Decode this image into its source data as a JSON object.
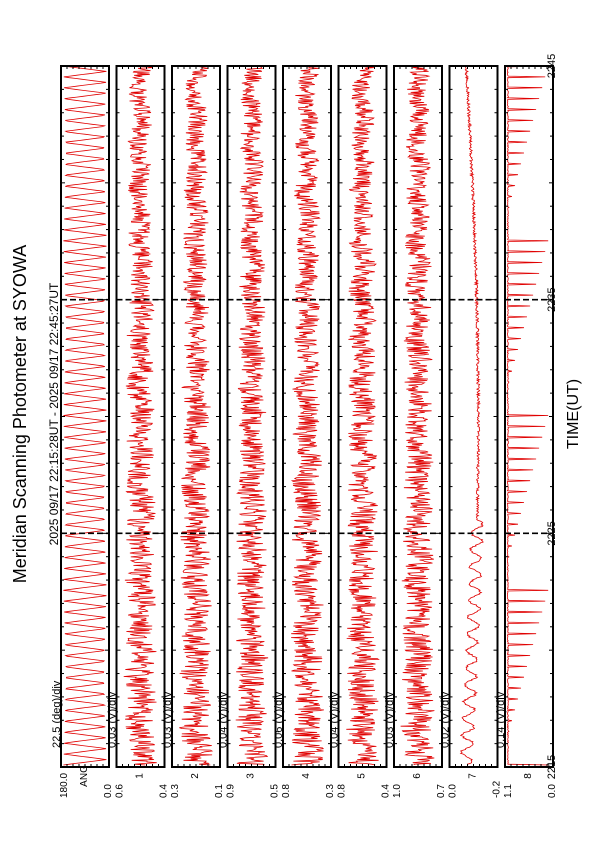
{
  "title": "Meridian Scanning Photometer at SYOWA",
  "time_range": "2025 09/17 22:15:28UT - 2025 09/17 22:45:27UT",
  "xlabel": "TIME(UT)",
  "line_color": "#e00000",
  "chart_data": {
    "type": "line",
    "x_ticks": [
      "2215",
      "2225",
      "2235",
      "2245"
    ],
    "x_range": [
      "2215",
      "2245"
    ],
    "panels": [
      {
        "channel": "ANG",
        "scale": "22.5 (deg)/div",
        "ytop": "180.0",
        "ybottom": "0.0",
        "ymin": 0.0,
        "ymax": 180.0,
        "pattern": "sweep"
      },
      {
        "channel": "1",
        "scale": "0.03 (V)/div",
        "ytop": "0.6",
        "ybottom": "0.4",
        "ymin": 0.4,
        "ymax": 0.6,
        "pattern": "noise"
      },
      {
        "channel": "2",
        "scale": "0.03 (V)/div",
        "ytop": "0.3",
        "ybottom": "0.1",
        "ymin": 0.1,
        "ymax": 0.3,
        "pattern": "noise"
      },
      {
        "channel": "3",
        "scale": "0.04 (V)/div",
        "ytop": "0.9",
        "ybottom": "0.5",
        "ymin": 0.5,
        "ymax": 0.9,
        "pattern": "noise"
      },
      {
        "channel": "4",
        "scale": "0.06 (V)/div",
        "ytop": "0.8",
        "ybottom": "0.3",
        "ymin": 0.3,
        "ymax": 0.8,
        "pattern": "noise"
      },
      {
        "channel": "5",
        "scale": "0.04 (V)/div",
        "ytop": "0.8",
        "ybottom": "0.4",
        "ymin": 0.4,
        "ymax": 0.8,
        "pattern": "noise"
      },
      {
        "channel": "6",
        "scale": "0.03 (V)/div",
        "ytop": "1.0",
        "ybottom": "0.7",
        "ymin": 0.7,
        "ymax": 1.0,
        "pattern": "noise"
      },
      {
        "channel": "7",
        "scale": "0.02 (V)/div",
        "ytop": "0.0",
        "ybottom": "-0.2",
        "ymin": -0.2,
        "ymax": 0.0,
        "pattern": "drift"
      },
      {
        "channel": "8",
        "scale": "0.14 (V)/div",
        "ytop": "1.1",
        "ybottom": "0.0",
        "ymin": 0.0,
        "ymax": 1.1,
        "pattern": "spikes"
      }
    ]
  }
}
